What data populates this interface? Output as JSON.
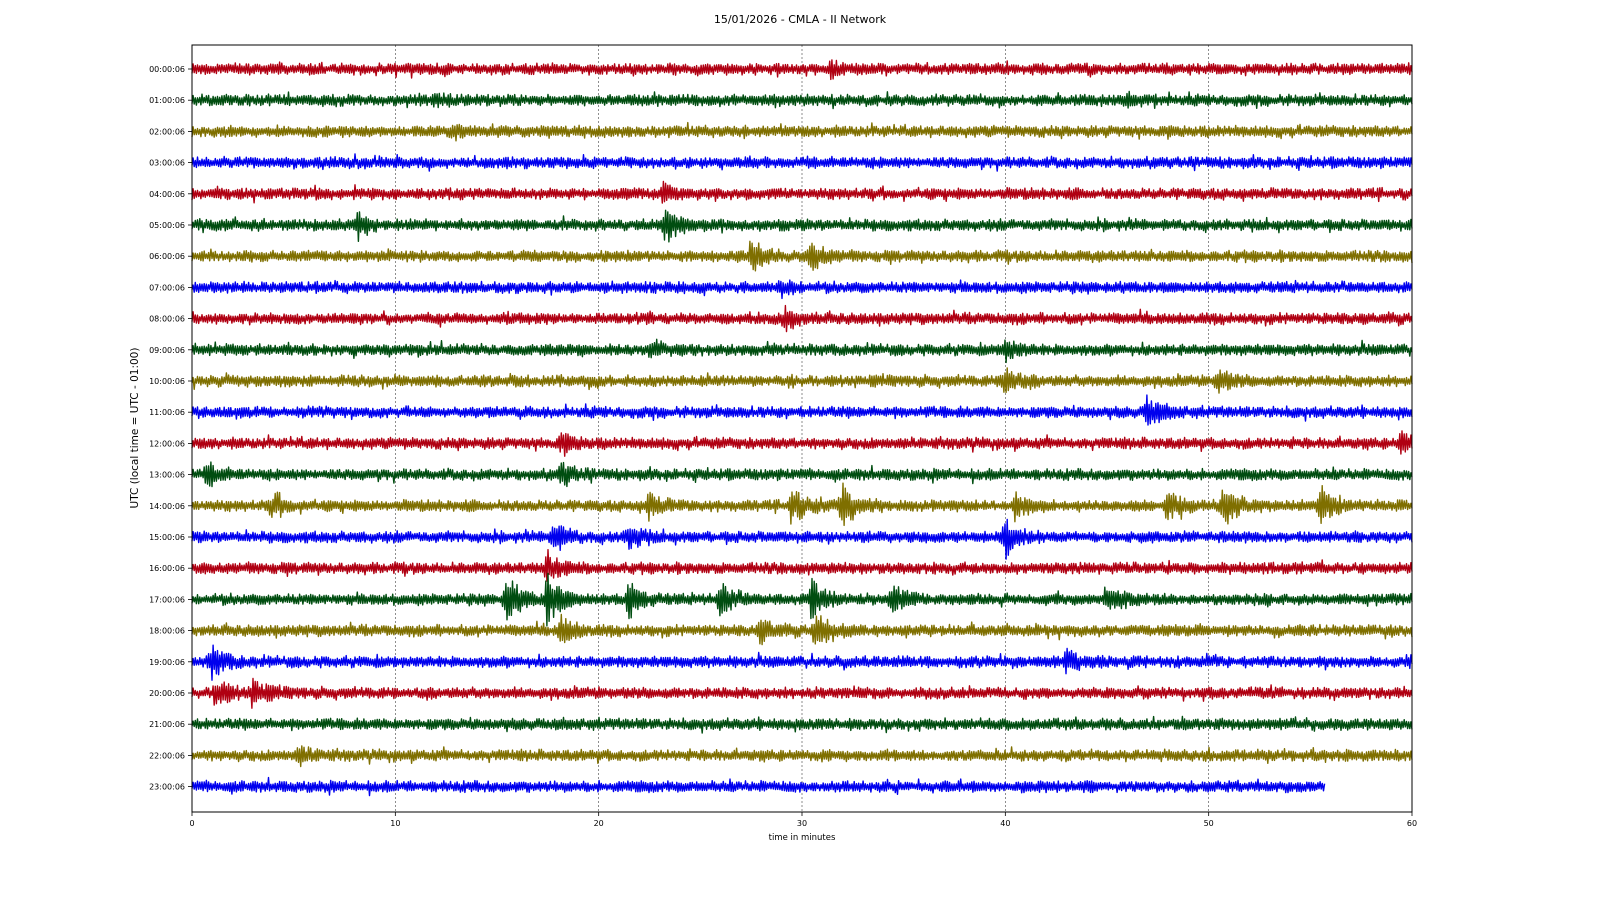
{
  "chart_data": {
    "type": "line",
    "title": "15/01/2026 - CMLA - II Network",
    "xlabel": "time in minutes",
    "ylabel": "UTC (local time = UTC - 01:00)",
    "xlim": [
      0,
      60
    ],
    "xticks": [
      0,
      10,
      20,
      30,
      40,
      50,
      60
    ],
    "grid": "vertical dashed at x ticks",
    "trace_colors": [
      "#b00012",
      "#004d10",
      "#7f6f00",
      "#0000ee"
    ],
    "rows": [
      {
        "label": "00:00:06",
        "end_minute": 60,
        "events": [
          {
            "t": 31.5,
            "amp": 0.5
          }
        ]
      },
      {
        "label": "01:00:06",
        "end_minute": 60,
        "events": [
          {
            "t": 12,
            "amp": 0.3
          },
          {
            "t": 46,
            "amp": 0.3
          }
        ]
      },
      {
        "label": "02:00:06",
        "end_minute": 60,
        "events": [
          {
            "t": 12.8,
            "amp": 0.4
          }
        ]
      },
      {
        "label": "03:00:06",
        "end_minute": 60,
        "events": []
      },
      {
        "label": "04:00:06",
        "end_minute": 60,
        "events": [
          {
            "t": 23.2,
            "amp": 0.7
          }
        ]
      },
      {
        "label": "05:00:06",
        "end_minute": 60,
        "events": [
          {
            "t": 8.2,
            "amp": 1.0
          },
          {
            "t": 23.3,
            "amp": 1.6
          }
        ]
      },
      {
        "label": "06:00:06",
        "end_minute": 60,
        "events": [
          {
            "t": 27.5,
            "amp": 1.5
          },
          {
            "t": 30.5,
            "amp": 1.1
          }
        ]
      },
      {
        "label": "07:00:06",
        "end_minute": 60,
        "events": [
          {
            "t": 29,
            "amp": 0.5
          }
        ]
      },
      {
        "label": "08:00:06",
        "end_minute": 60,
        "events": [
          {
            "t": 29.2,
            "amp": 0.8
          }
        ]
      },
      {
        "label": "09:00:06",
        "end_minute": 60,
        "events": [
          {
            "t": 22.5,
            "amp": 0.6
          },
          {
            "t": 40,
            "amp": 0.8
          }
        ]
      },
      {
        "label": "10:00:06",
        "end_minute": 60,
        "events": [
          {
            "t": 40,
            "amp": 1.3
          },
          {
            "t": 50.5,
            "amp": 0.9
          }
        ]
      },
      {
        "label": "11:00:06",
        "end_minute": 60,
        "events": [
          {
            "t": 47,
            "amp": 1.2
          }
        ]
      },
      {
        "label": "12:00:06",
        "end_minute": 60,
        "events": [
          {
            "t": 18.2,
            "amp": 0.6
          },
          {
            "t": 59.5,
            "amp": 0.9
          }
        ]
      },
      {
        "label": "13:00:06",
        "end_minute": 60,
        "events": [
          {
            "t": 0.8,
            "amp": 0.8
          },
          {
            "t": 18.2,
            "amp": 0.9
          }
        ]
      },
      {
        "label": "14:00:06",
        "end_minute": 60,
        "events": [
          {
            "t": 4,
            "amp": 1.0
          },
          {
            "t": 22.5,
            "amp": 1.0
          },
          {
            "t": 29.5,
            "amp": 1.5
          },
          {
            "t": 32,
            "amp": 1.6
          },
          {
            "t": 40.5,
            "amp": 1.0
          },
          {
            "t": 48,
            "amp": 1.3
          },
          {
            "t": 50.8,
            "amp": 2.0
          },
          {
            "t": 55.5,
            "amp": 1.5
          }
        ]
      },
      {
        "label": "15:00:06",
        "end_minute": 60,
        "events": [
          {
            "t": 17.8,
            "amp": 1.4
          },
          {
            "t": 21.5,
            "amp": 1.1
          },
          {
            "t": 40,
            "amp": 1.5
          }
        ]
      },
      {
        "label": "16:00:06",
        "end_minute": 60,
        "events": [
          {
            "t": 17.5,
            "amp": 1.2
          }
        ]
      },
      {
        "label": "17:00:06",
        "end_minute": 60,
        "events": [
          {
            "t": 15.5,
            "amp": 2.0
          },
          {
            "t": 17.5,
            "amp": 2.2
          },
          {
            "t": 21.5,
            "amp": 1.4
          },
          {
            "t": 26,
            "amp": 1.5
          },
          {
            "t": 30.5,
            "amp": 1.8
          },
          {
            "t": 34.5,
            "amp": 1.3
          },
          {
            "t": 45,
            "amp": 1.1
          }
        ]
      },
      {
        "label": "18:00:06",
        "end_minute": 60,
        "events": [
          {
            "t": 18.2,
            "amp": 1.1
          },
          {
            "t": 28,
            "amp": 0.9
          },
          {
            "t": 30.7,
            "amp": 1.5
          }
        ]
      },
      {
        "label": "19:00:06",
        "end_minute": 60,
        "events": [
          {
            "t": 1,
            "amp": 1.3
          },
          {
            "t": 43,
            "amp": 1.0
          }
        ]
      },
      {
        "label": "20:00:06",
        "end_minute": 60,
        "events": [
          {
            "t": 1.2,
            "amp": 1.2
          },
          {
            "t": 3,
            "amp": 1.0
          }
        ]
      },
      {
        "label": "21:00:06",
        "end_minute": 60,
        "events": []
      },
      {
        "label": "22:00:06",
        "end_minute": 60,
        "events": [
          {
            "t": 5.3,
            "amp": 0.6
          }
        ]
      },
      {
        "label": "23:00:06",
        "end_minute": 55.7,
        "events": []
      }
    ]
  }
}
